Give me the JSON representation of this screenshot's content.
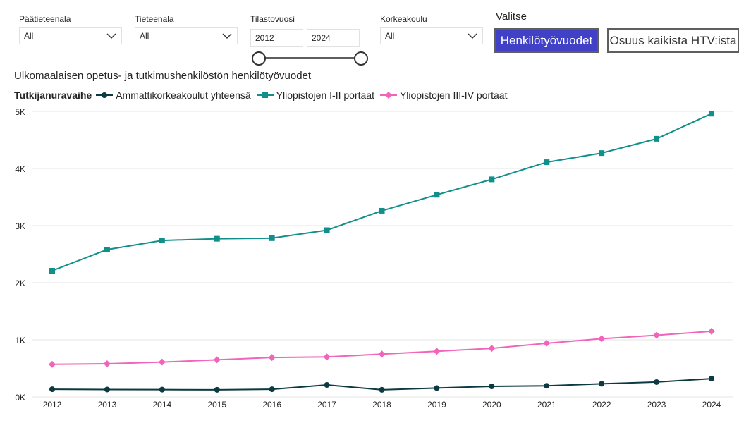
{
  "filters": [
    {
      "title": "Päätieteenala",
      "value": "All"
    },
    {
      "title": "Tieteenala",
      "value": "All"
    },
    {
      "title": "Tilastovuosi",
      "from": "2012",
      "to": "2024"
    },
    {
      "title": "Korkeakoulu",
      "value": "All"
    }
  ],
  "selector": {
    "label": "Valitse",
    "options": [
      "Henkilötyövuodet",
      "Osuus kaikista HTV:ista"
    ],
    "selected": "Henkilötyövuodet"
  },
  "colors": {
    "accent": "#4141c8",
    "s1": "#0c3a42",
    "s2": "#118f8a",
    "s3": "#f064b9"
  },
  "chart_data": {
    "type": "line",
    "title": "Ulkomaalaisen opetus- ja tutkimushenkilöstön henkilötyövuodet",
    "legend_title": "Tutkijanuravaihe",
    "legend_position": "top-left",
    "x": [
      2012,
      2013,
      2014,
      2015,
      2016,
      2017,
      2018,
      2019,
      2020,
      2021,
      2022,
      2023,
      2024
    ],
    "y_ticks": [
      "0K",
      "1K",
      "2K",
      "3K",
      "4K",
      "5K"
    ],
    "ylim": [
      0,
      5000
    ],
    "grid": true,
    "series": [
      {
        "name": "Ammattikorkeakoulut yhteensä",
        "marker": "circle",
        "values": [
          135,
          130,
          128,
          125,
          135,
          210,
          125,
          155,
          185,
          195,
          230,
          260,
          320
        ]
      },
      {
        "name": "Yliopistojen I-II portaat",
        "marker": "square",
        "values": [
          2210,
          2580,
          2740,
          2770,
          2780,
          2920,
          3260,
          3540,
          3810,
          4110,
          4270,
          4520,
          4960
        ]
      },
      {
        "name": "Yliopistojen III-IV portaat",
        "marker": "diamond",
        "values": [
          570,
          580,
          610,
          650,
          690,
          700,
          750,
          800,
          850,
          940,
          1020,
          1080,
          1150
        ]
      }
    ]
  }
}
